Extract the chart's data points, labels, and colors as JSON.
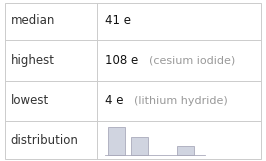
{
  "rows": [
    {
      "label": "median",
      "value": "41 e",
      "note": ""
    },
    {
      "label": "highest",
      "value": "108 e",
      "note": "(cesium iodide)"
    },
    {
      "label": "lowest",
      "value": "4 e",
      "note": "(lithium hydride)"
    },
    {
      "label": "distribution",
      "value": "",
      "note": ""
    }
  ],
  "hist_bars": [
    3,
    2,
    0,
    1
  ],
  "bar_color": "#d0d4e0",
  "bar_edge_color": "#aaaabb",
  "background_color": "#ffffff",
  "border_color": "#cccccc",
  "label_fontsize": 8.5,
  "value_fontsize": 8.5,
  "note_fontsize": 8.0,
  "label_color": "#333333",
  "value_color": "#111111",
  "note_color": "#999999",
  "col_split": 0.365
}
